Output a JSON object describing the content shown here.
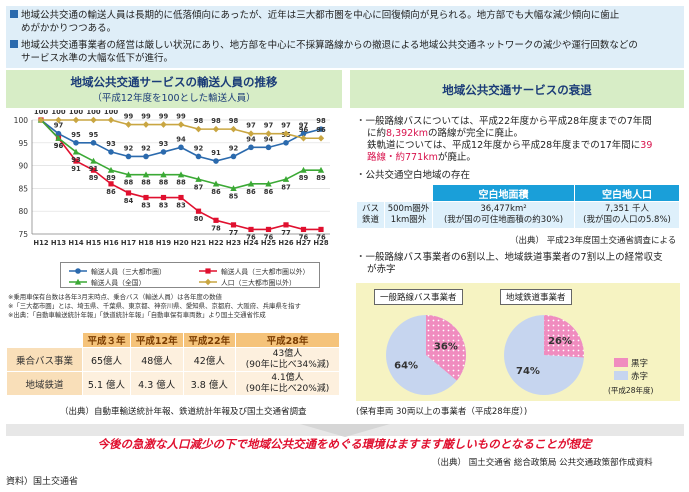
{
  "intro": {
    "line1": "地域公共交通の輸送人員は長期的に低落傾向にあったが、近年は三大都市圏を中心に回復傾向が見られる。地方部でも大幅な減少傾向に歯止",
    "line1b": "めがかかりつつある。",
    "line2": "地域公共交通事業者の経営は厳しい状況にあり、地方部を中心に不採算路線からの撤退による地域公共交通ネットワークの減少や運行回数などの",
    "line2b": "サービス水準の大幅な低下が進行。"
  },
  "left": {
    "title": "地域公共交通サービスの輸送人員の推移",
    "subtitle": "（平成12年度を100とした輸送人員）",
    "notes": [
      "※乗用車保有台数は各年3月末時点、乗合バス（輸送人員）は各年度の数値",
      "※「三大都市圏」とは、埼玉県、千葉県、東京都、神奈川県、愛知県、京都府、大阪府、兵庫県を指す",
      "※出典：「自動車輸送統計年報」「鉄道統計年報」「自動車保有車両数」より国土交通省作成"
    ],
    "source": "（出典）自動車輸送統計年報、鉄道統計年報及び国土交通省調査"
  },
  "table1": {
    "headers": [
      "平成３年",
      "平成12年",
      "平成22年",
      "平成28年"
    ],
    "rows": [
      {
        "label": "乗合バス事業",
        "cells": [
          "65億人",
          "48億人",
          "42億人"
        ],
        "last1": "43億人",
        "last2": "(90年に比べ34%減)"
      },
      {
        "label": "地域鉄道",
        "cells": [
          "5.1 億人",
          "4.3 億人",
          "3.8 億人"
        ],
        "last1": "4.1億人",
        "last2": "(90年に比べ20%減)"
      }
    ]
  },
  "right": {
    "title": "地域公共交通サービスの衰退",
    "b1a": "一般路線バスについては、平成22年度から平成28年度までの7年間",
    "b1b_pre": "に約",
    "b1b_red": "8,392km",
    "b1b_post": "の路線が完全に廃止。",
    "b1c": "鉄軌道については、平成12年度から平成28年度までの17年間に",
    "b1c_red": "39",
    "b1d_red": "路線・約771km",
    "b1d_post": "が廃止。",
    "b2": "公共交通空白地域の存在",
    "t2_h1": "空白地面積",
    "t2_h2": "空白地人口",
    "t2_row_label1": "バス",
    "t2_row_label2": "鉄道",
    "t2_cond1": "500m圏外",
    "t2_cond2": "1km圏外",
    "t2_area1": "36,477km²",
    "t2_area2": "(我が国の可住地面積の約30%)",
    "t2_pop1": "7,351 千人",
    "t2_pop2": "(我が国の人口の5.8%)",
    "src3": "（出典） 平成23年度国土交通省調査による",
    "b3a": "一般路線バス事業者の6割以上、地域鉄道事業者の7割以上の経常収支",
    "b3b": "が赤字",
    "pie1_label": "一般路線バス事業者",
    "pie2_label": "地域鉄道事業者",
    "pie_legend_black": "黒字",
    "pie_legend_red": "赤字",
    "pie_year": "(平成28年度)",
    "src2": "(保有車両 30両以上の事業者（平成28年度）)"
  },
  "footer": {
    "message": "今後の急激な人口減少の下で地域公共交通をめぐる環境はますます厳しいものとなることが想定",
    "source": "（出典） 国土交通省 総合政策局 公共交通政策部作成資料",
    "material": "資料）国土交通省"
  },
  "colors": {
    "blue": "#2b6aad",
    "red": "#e0102f",
    "green": "#3ba935",
    "gold": "#c9a642",
    "pink": "#f08cbf",
    "lightblue": "#c6d5ef"
  },
  "chart_data": [
    {
      "type": "line",
      "title": "地域公共交通サービスの輸送人員の推移",
      "subtitle": "（平成12年度を100とした輸送人員）",
      "categories": [
        "H12",
        "H13",
        "H14",
        "H15",
        "H16",
        "H17",
        "H18",
        "H19",
        "H20",
        "H21",
        "H22",
        "H23",
        "H24",
        "H25",
        "H26",
        "H27",
        "H28"
      ],
      "ylim": [
        75,
        100
      ],
      "yticks": [
        75,
        80,
        85,
        90,
        95,
        100
      ],
      "series": [
        {
          "name": "輸送人員（三大都市圏）",
          "color": "#2b6aad",
          "marker": "circle",
          "values": [
            100,
            97,
            95,
            95,
            93,
            92,
            92,
            93,
            94,
            92,
            91,
            92,
            94,
            94,
            95,
            97,
            98
          ]
        },
        {
          "name": "輸送人員（三大都市圏以外）",
          "color": "#e0102f",
          "marker": "square",
          "values": [
            100,
            96,
            91,
            89,
            86,
            84,
            83,
            83,
            83,
            80,
            78,
            77,
            76,
            76,
            77,
            76,
            76
          ]
        },
        {
          "name": "輸送人員（全国）",
          "color": "#3ba935",
          "marker": "triangle",
          "values": [
            100,
            96,
            93,
            91,
            89,
            88,
            88,
            88,
            88,
            87,
            86,
            85,
            86,
            86,
            87,
            89,
            89
          ]
        },
        {
          "name": "人口（三大都市圏以外）",
          "color": "#c9a642",
          "marker": "diamond",
          "values": [
            100,
            100,
            100,
            100,
            100,
            99,
            99,
            99,
            99,
            98,
            98,
            98,
            97,
            97,
            97,
            96,
            96
          ]
        }
      ]
    },
    {
      "type": "pie",
      "title": "一般路線バス事業者",
      "slices": [
        {
          "label": "黒字",
          "value": 36
        },
        {
          "label": "赤字",
          "value": 64
        }
      ]
    },
    {
      "type": "pie",
      "title": "地域鉄道事業者",
      "slices": [
        {
          "label": "黒字",
          "value": 26
        },
        {
          "label": "赤字",
          "value": 74
        }
      ]
    }
  ]
}
